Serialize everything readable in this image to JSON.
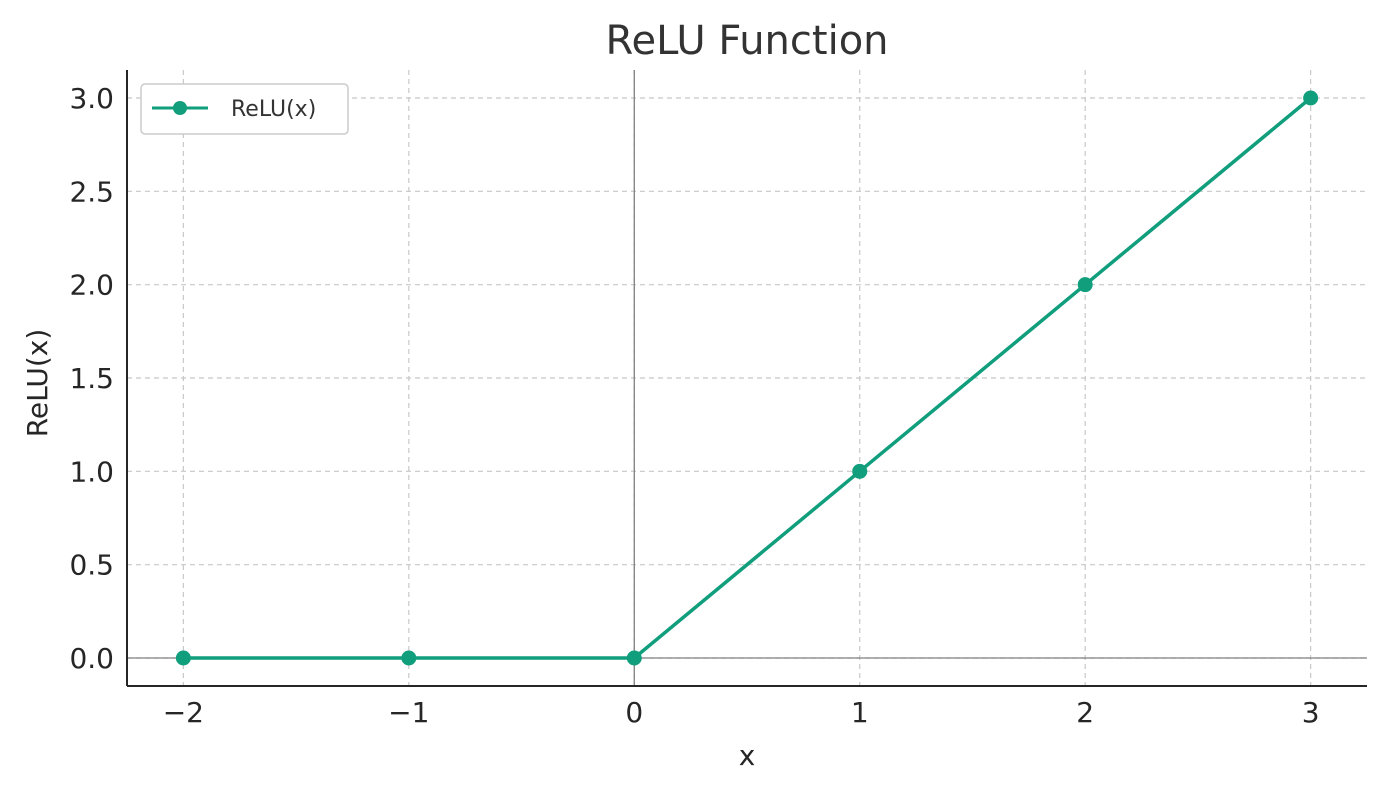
{
  "chart_data": {
    "type": "line",
    "title": "ReLU Function",
    "xlabel": "x",
    "ylabel": "ReLU(x)",
    "x": [
      -2,
      -1,
      0,
      1,
      2,
      3
    ],
    "series": [
      {
        "name": "ReLU(x)",
        "values": [
          0,
          0,
          0,
          1,
          2,
          3
        ],
        "color": "#109e7c",
        "marker": "circle"
      }
    ],
    "xticks": [
      -2,
      -1,
      0,
      1,
      2,
      3
    ],
    "xtick_labels": [
      "−2",
      "−1",
      "0",
      "1",
      "2",
      "3"
    ],
    "yticks": [
      0.0,
      0.5,
      1.0,
      1.5,
      2.0,
      2.5,
      3.0
    ],
    "ytick_labels": [
      "0.0",
      "0.5",
      "1.0",
      "1.5",
      "2.0",
      "2.5",
      "3.0"
    ],
    "xlim": [
      -2.25,
      3.25
    ],
    "ylim": [
      -0.15,
      3.15
    ],
    "grid": true,
    "grid_style": "dashed",
    "reference_lines": {
      "x": 0,
      "y": 0,
      "color": "#808080"
    },
    "legend_position": "top-left"
  }
}
